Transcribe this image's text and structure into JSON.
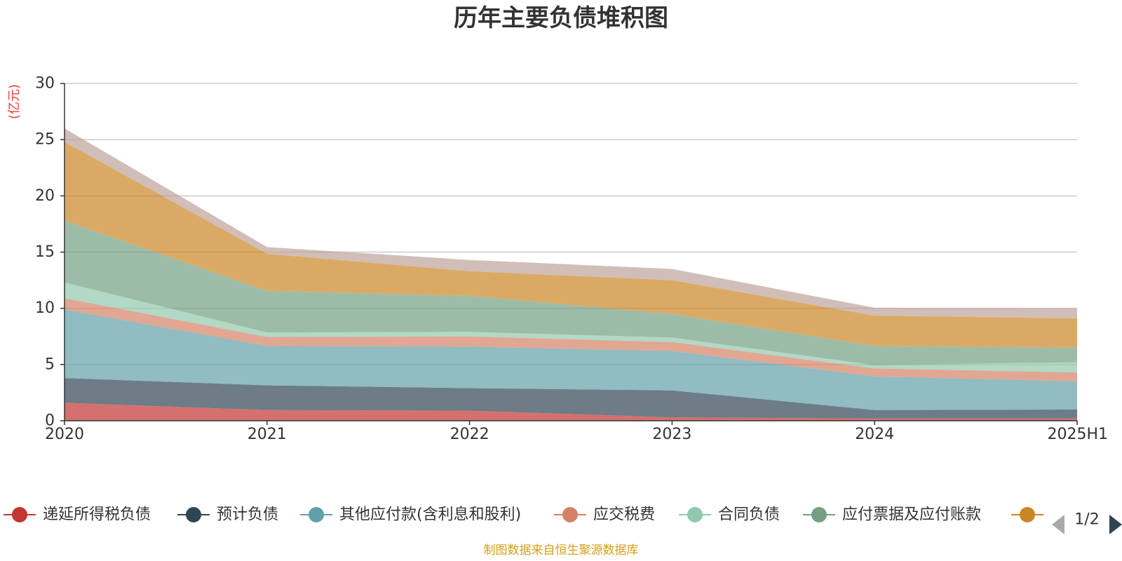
{
  "chart_data": {
    "type": "area",
    "title": "历年主要负债堆积图",
    "y_unit": "(亿元)",
    "x": [
      "2020",
      "2021",
      "2022",
      "2023",
      "2024",
      "2025H1"
    ],
    "ylim": [
      0,
      30
    ],
    "yticks": [
      0,
      5,
      10,
      15,
      20,
      25,
      30
    ],
    "grid": true,
    "stacked": true,
    "series": [
      {
        "name": "递延所得税负债",
        "color": "#c23531",
        "values": [
          1.6,
          0.95,
          0.9,
          0.3,
          0.2,
          0.2
        ]
      },
      {
        "name": "预计负债",
        "color": "#2f4554",
        "values": [
          2.2,
          2.2,
          2.0,
          2.4,
          0.75,
          0.8
        ]
      },
      {
        "name": "其他应付款(含利息和股利)",
        "color": "#61a0a8",
        "values": [
          6.1,
          3.5,
          3.7,
          3.5,
          3.0,
          2.5
        ]
      },
      {
        "name": "应交税费",
        "color": "#d48265",
        "values": [
          1.0,
          0.8,
          0.9,
          0.8,
          0.7,
          0.8
        ]
      },
      {
        "name": "合同负债",
        "color": "#91c7ae",
        "values": [
          1.4,
          0.4,
          0.4,
          0.4,
          0.3,
          0.9
        ]
      },
      {
        "name": "应付票据及应付账款",
        "color": "#749f83",
        "values": [
          5.5,
          3.7,
          3.2,
          2.1,
          1.7,
          1.3
        ]
      },
      {
        "name": "",
        "color": "#ca8622",
        "values": [
          7.0,
          3.3,
          2.2,
          3.0,
          2.7,
          2.6
        ]
      },
      {
        "name": "",
        "color": "#bda29a",
        "values": [
          1.2,
          0.6,
          1.0,
          1.0,
          0.7,
          0.9
        ]
      }
    ]
  },
  "legend": {
    "page": "1/2"
  },
  "footer": {
    "source": "制图数据来自恒生聚源数据库",
    "source_color": "#d4a017"
  }
}
